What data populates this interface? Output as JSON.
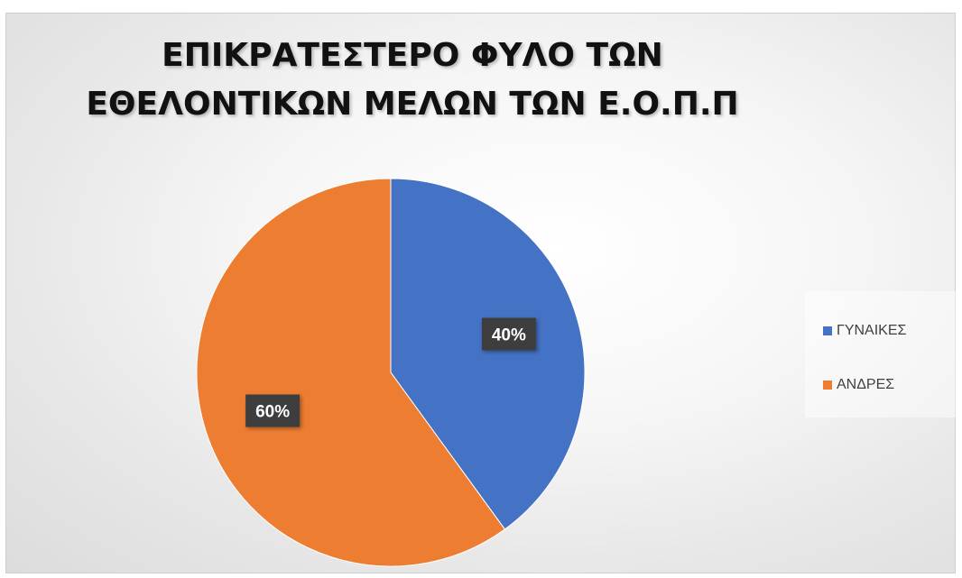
{
  "chart_data": {
    "type": "pie",
    "title_lines": [
      "ΕΠΙΚΡΑΤΕΣΤΕΡΟ ΦΥΛΟ ΤΩΝ",
      "ΕΘΕΛΟΝΤΙΚΩΝ ΜΕΛΩΝ ΤΩΝ Ε.Ο.Π.Π"
    ],
    "categories": [
      "ΓΥΝΑΙΚΕΣ",
      "ΑΝΔΡΕΣ"
    ],
    "values": [
      40,
      60
    ],
    "data_labels": [
      "40%",
      "60%"
    ],
    "colors": [
      "#4472c4",
      "#ed7d31"
    ],
    "legend_position": "right"
  }
}
